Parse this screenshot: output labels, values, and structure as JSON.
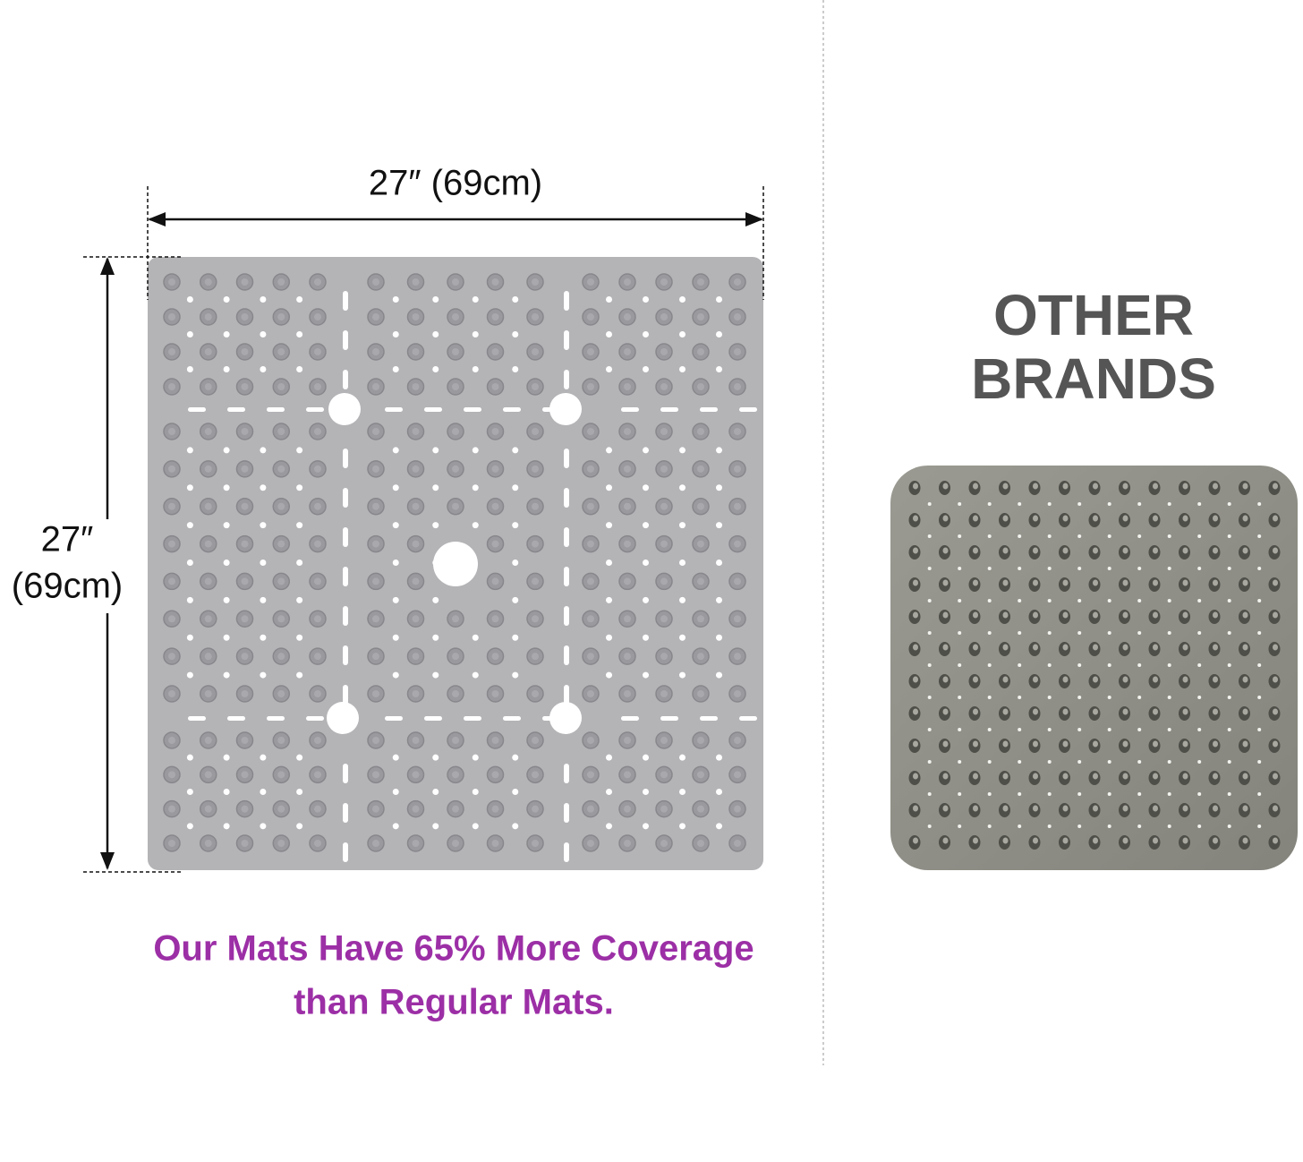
{
  "left": {
    "width_label": "27″ (69cm)",
    "height_label": [
      "27″",
      "(69cm)"
    ],
    "caption": [
      "Our Mats Have 65% More Coverage",
      "than Regular Mats."
    ]
  },
  "right": {
    "title": [
      "OTHER",
      "BRANDS"
    ]
  }
}
